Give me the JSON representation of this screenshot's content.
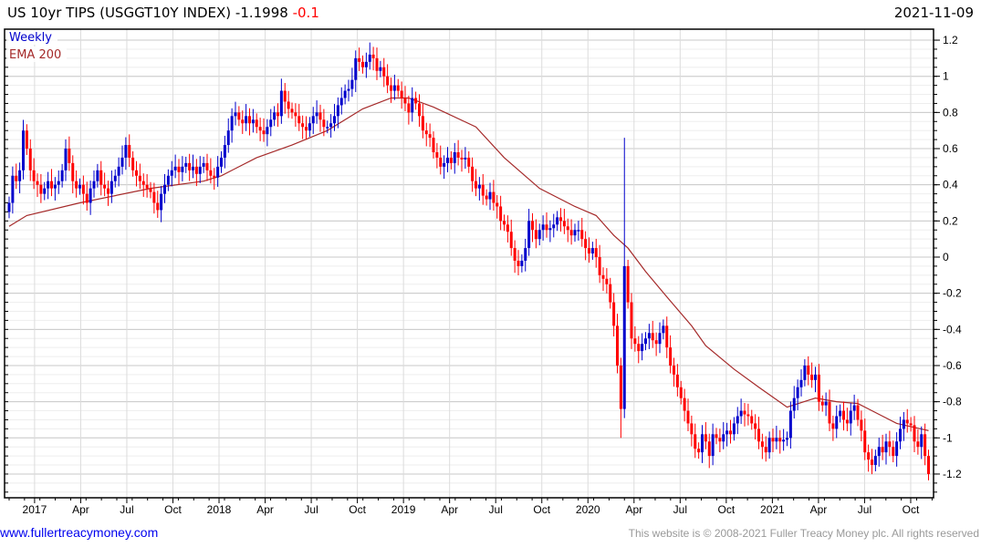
{
  "header": {
    "title": "US 10yr TIPS (USGGT10Y INDEX) -1.1998",
    "change": "-0.1",
    "date": "2021-11-09"
  },
  "footer": {
    "link": "www.fullertreacymoney.com",
    "copyright": "This website is © 2008-2021 Fuller Treacy Money plc. All rights reserved"
  },
  "colors": {
    "up": "#0000cc",
    "down": "#ff0000",
    "ema": "#a52a2a",
    "change": "#ff0000",
    "grid": "#d8d8d8"
  },
  "chart_data": {
    "type": "candlestick",
    "title": "US 10yr TIPS (USGGT10Y INDEX)",
    "frequency_label": "Weekly",
    "ema_label": "EMA 200",
    "ylim": [
      -1.32,
      1.28
    ],
    "y_ticks": [
      1.2,
      1,
      0.8,
      0.6,
      0.4,
      0.2,
      0,
      -0.2,
      -0.4,
      -0.6,
      -0.8,
      -1,
      -1.2
    ],
    "y_tick_labels": [
      "1.2",
      "1",
      "0.8",
      "0.6",
      "0.4",
      "0.2",
      "0",
      "-0.2",
      "-0.4",
      "-0.6",
      "-0.8",
      "-1",
      "-1.2"
    ],
    "x_tick_labels": [
      "2017",
      "Apr",
      "Jul",
      "Oct",
      "2018",
      "Apr",
      "Jul",
      "Oct",
      "2019",
      "Apr",
      "Jul",
      "Oct",
      "2020",
      "Apr",
      "Jul",
      "Oct",
      "2021",
      "Apr",
      "Jul",
      "Oct"
    ],
    "weekly_close": [
      0.3,
      0.45,
      0.42,
      0.48,
      0.7,
      0.6,
      0.48,
      0.42,
      0.4,
      0.35,
      0.38,
      0.42,
      0.38,
      0.4,
      0.42,
      0.48,
      0.6,
      0.52,
      0.42,
      0.38,
      0.4,
      0.35,
      0.3,
      0.38,
      0.42,
      0.48,
      0.4,
      0.38,
      0.35,
      0.42,
      0.45,
      0.5,
      0.55,
      0.62,
      0.55,
      0.48,
      0.45,
      0.42,
      0.4,
      0.38,
      0.36,
      0.3,
      0.26,
      0.35,
      0.4,
      0.45,
      0.48,
      0.5,
      0.47,
      0.5,
      0.52,
      0.48,
      0.5,
      0.46,
      0.5,
      0.52,
      0.48,
      0.45,
      0.44,
      0.5,
      0.55,
      0.62,
      0.7,
      0.78,
      0.8,
      0.76,
      0.74,
      0.78,
      0.74,
      0.76,
      0.72,
      0.7,
      0.68,
      0.72,
      0.76,
      0.8,
      0.78,
      0.92,
      0.86,
      0.82,
      0.8,
      0.78,
      0.74,
      0.72,
      0.7,
      0.74,
      0.78,
      0.8,
      0.76,
      0.72,
      0.72,
      0.74,
      0.78,
      0.84,
      0.88,
      0.92,
      0.93,
      0.98,
      1.1,
      1.08,
      1.05,
      1.08,
      1.12,
      1.1,
      1.03,
      1.05,
      1.0,
      0.95,
      0.92,
      0.95,
      0.92,
      0.88,
      0.85,
      0.8,
      0.88,
      0.85,
      0.78,
      0.7,
      0.68,
      0.66,
      0.58,
      0.55,
      0.5,
      0.52,
      0.55,
      0.52,
      0.58,
      0.55,
      0.54,
      0.55,
      0.5,
      0.42,
      0.38,
      0.4,
      0.34,
      0.32,
      0.36,
      0.3,
      0.28,
      0.2,
      0.18,
      0.14,
      0.05,
      -0.02,
      -0.05,
      -0.02,
      0.05,
      0.2,
      0.15,
      0.1,
      0.15,
      0.18,
      0.15,
      0.16,
      0.18,
      0.22,
      0.2,
      0.17,
      0.15,
      0.12,
      0.15,
      0.15,
      0.1,
      0.05,
      0.02,
      0.05,
      0.0,
      -0.1,
      -0.12,
      -0.15,
      -0.25,
      -0.38,
      -0.6,
      -0.84,
      -0.05,
      -0.25,
      -0.45,
      -0.48,
      -0.52,
      -0.48,
      -0.45,
      -0.42,
      -0.46,
      -0.48,
      -0.42,
      -0.38,
      -0.5,
      -0.6,
      -0.65,
      -0.72,
      -0.78,
      -0.85,
      -0.92,
      -0.98,
      -1.06,
      -1.08,
      -0.98,
      -1.02,
      -1.1,
      -0.98,
      -1.0,
      -1.02,
      -0.98,
      -0.96,
      -0.98,
      -0.92,
      -0.88,
      -0.85,
      -0.87,
      -0.88,
      -0.92,
      -0.95,
      -1.02,
      -1.05,
      -1.08,
      -1.0,
      -1.02,
      -1.0,
      -1.02,
      -1.01,
      -1.0,
      -0.85,
      -0.78,
      -0.72,
      -0.68,
      -0.6,
      -0.65,
      -0.68,
      -0.65,
      -0.8,
      -0.82,
      -0.8,
      -0.92,
      -0.95,
      -0.88,
      -0.85,
      -0.9,
      -0.92,
      -0.85,
      -0.82,
      -0.9,
      -0.96,
      -1.08,
      -1.12,
      -1.15,
      -1.1,
      -1.05,
      -1.08,
      -1.02,
      -1.05,
      -1.1,
      -1.02,
      -0.95,
      -0.9,
      -0.92,
      -0.93,
      -1.02,
      -1.05,
      -0.98,
      -1.1,
      -1.2
    ],
    "wick_overrides": {
      "173": {
        "low": -1.0
      },
      "174": {
        "high": 0.66
      }
    },
    "ema_200": [
      [
        0,
        0.17
      ],
      [
        5,
        0.23
      ],
      [
        20,
        0.3
      ],
      [
        40,
        0.38
      ],
      [
        55,
        0.42
      ],
      [
        60,
        0.45
      ],
      [
        70,
        0.55
      ],
      [
        80,
        0.62
      ],
      [
        90,
        0.7
      ],
      [
        100,
        0.82
      ],
      [
        108,
        0.88
      ],
      [
        113,
        0.88
      ],
      [
        120,
        0.83
      ],
      [
        132,
        0.72
      ],
      [
        140,
        0.55
      ],
      [
        150,
        0.38
      ],
      [
        160,
        0.28
      ],
      [
        166,
        0.23
      ],
      [
        171,
        0.12
      ],
      [
        175,
        0.05
      ],
      [
        180,
        -0.08
      ],
      [
        186,
        -0.22
      ],
      [
        193,
        -0.38
      ],
      [
        197,
        -0.49
      ],
      [
        205,
        -0.62
      ],
      [
        212,
        -0.72
      ],
      [
        220,
        -0.83
      ],
      [
        228,
        -0.78
      ],
      [
        234,
        -0.8
      ],
      [
        240,
        -0.81
      ],
      [
        246,
        -0.87
      ],
      [
        251,
        -0.92
      ],
      [
        260,
        -0.96
      ]
    ]
  }
}
